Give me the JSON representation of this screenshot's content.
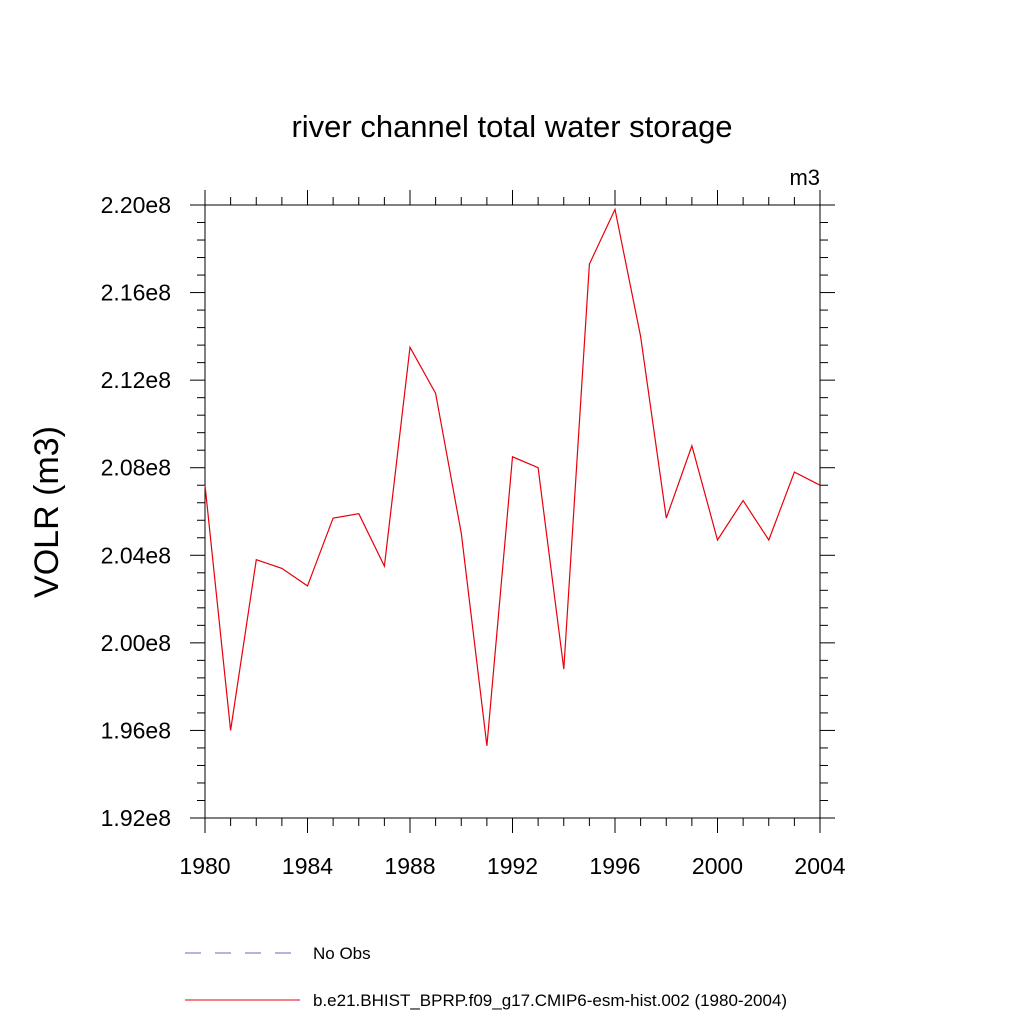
{
  "chart_data": {
    "type": "line",
    "title": "river channel total water storage",
    "units_label": "m3",
    "ylabel": "VOLR  (m3)",
    "xlabel": "",
    "xlim": [
      1980,
      2004
    ],
    "ylim": [
      192000000.0,
      220000000.0
    ],
    "x_ticks": [
      1980,
      1984,
      1988,
      1992,
      1996,
      2000,
      2004
    ],
    "x_tick_labels": [
      "1980",
      "1984",
      "1988",
      "1992",
      "1996",
      "2000",
      "2004"
    ],
    "y_ticks": [
      192000000.0,
      196000000.0,
      200000000.0,
      204000000.0,
      208000000.0,
      212000000.0,
      216000000.0,
      220000000.0
    ],
    "y_tick_labels": [
      "1.92e8",
      "1.96e8",
      "2.00e8",
      "2.04e8",
      "2.08e8",
      "2.12e8",
      "2.16e8",
      "2.20e8"
    ],
    "grid": false,
    "legend_position": "bottom",
    "series": [
      {
        "name": "b.e21.BHIST_BPRP.f09_g17.CMIP6-esm-hist.002 (1980-2004)",
        "color": "#e8000b",
        "style": "solid",
        "x": [
          1980,
          1981,
          1982,
          1983,
          1984,
          1985,
          1986,
          1987,
          1988,
          1989,
          1990,
          1991,
          1992,
          1993,
          1994,
          1995,
          1996,
          1997,
          1998,
          1999,
          2000,
          2001,
          2002,
          2003,
          2004
        ],
        "values": [
          207200000.0,
          196000000.0,
          203800000.0,
          203400000.0,
          202600000.0,
          205700000.0,
          205900000.0,
          203500000.0,
          213500000.0,
          211400000.0,
          205000000.0,
          195300000.0,
          208500000.0,
          208000000.0,
          198800000.0,
          217300000.0,
          219800000.0,
          214000000.0,
          205700000.0,
          209000000.0,
          204700000.0,
          206500000.0,
          204700000.0,
          207800000.0,
          207200000.0
        ]
      }
    ],
    "legend": [
      {
        "name": "No Obs",
        "color": "#6a6ac0",
        "style": "dashed"
      },
      {
        "name": "b.e21.BHIST_BPRP.f09_g17.CMIP6-esm-hist.002 (1980-2004)",
        "color": "#e8000b",
        "style": "solid"
      }
    ]
  }
}
